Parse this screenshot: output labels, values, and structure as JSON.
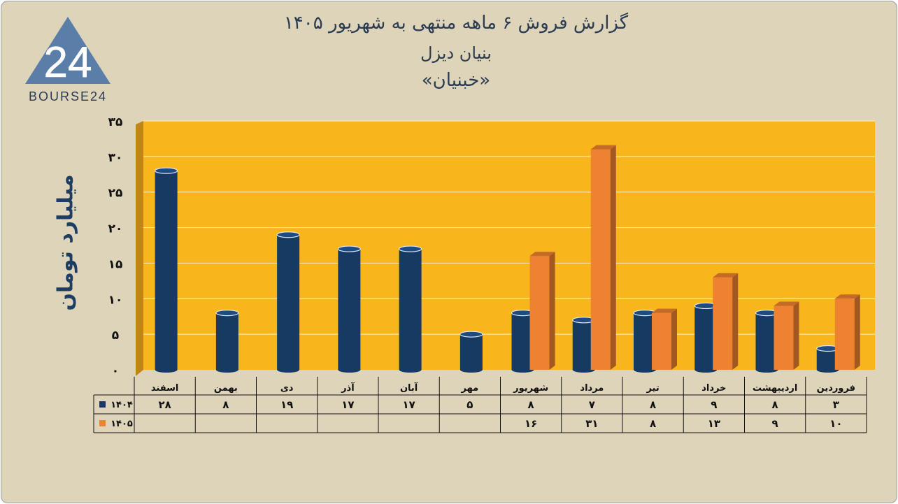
{
  "titles": [
    "گزارش  فروش ۶ ماهه منتهی به شهریور ۱۴۰۵",
    "بنیان دیزل",
    "«خبنیان»"
  ],
  "logo": {
    "text": "BOURSE24",
    "mark": "24",
    "icon": "triangle-24-logo"
  },
  "chart_data": {
    "type": "bar",
    "ylabel": "میلیارد تومان",
    "ylim": [
      0,
      35
    ],
    "yticks": [
      0,
      5,
      10,
      15,
      20,
      25,
      30,
      35
    ],
    "ytick_labels": [
      "۰",
      "۵",
      "۱۰",
      "۱۵",
      "۲۰",
      "۲۵",
      "۳۰",
      "۳۵"
    ],
    "grid": true,
    "categories": [
      "فروردین",
      "اردیبهشت",
      "خرداد",
      "تیر",
      "مرداد",
      "شهریور",
      "مهر",
      "آبان",
      "آذر",
      "دی",
      "بهمن",
      "اسفند"
    ],
    "series": [
      {
        "name": "۱۴۰۴",
        "color": "#173a63",
        "values": [
          3,
          8,
          9,
          8,
          7,
          8,
          5,
          17,
          17,
          19,
          8,
          28
        ],
        "labels": [
          "۳",
          "۸",
          "۹",
          "۸",
          "۷",
          "۸",
          "۵",
          "۱۷",
          "۱۷",
          "۱۹",
          "۸",
          "۲۸"
        ]
      },
      {
        "name": "۱۴۰۵",
        "color": "#ee8230",
        "values": [
          10,
          9,
          13,
          8,
          31,
          16,
          null,
          null,
          null,
          null,
          null,
          null
        ],
        "labels": [
          "۱۰",
          "۹",
          "۱۳",
          "۸",
          "۳۱",
          "۱۶",
          "",
          "",
          "",
          "",
          "",
          ""
        ]
      }
    ],
    "colors": {
      "plot_bg": "#f8b51c",
      "wall_side": "#c08515",
      "frame_bg": "#ddd4b9",
      "title": "#2b3b52",
      "ylabel": "#1e3d63"
    }
  }
}
